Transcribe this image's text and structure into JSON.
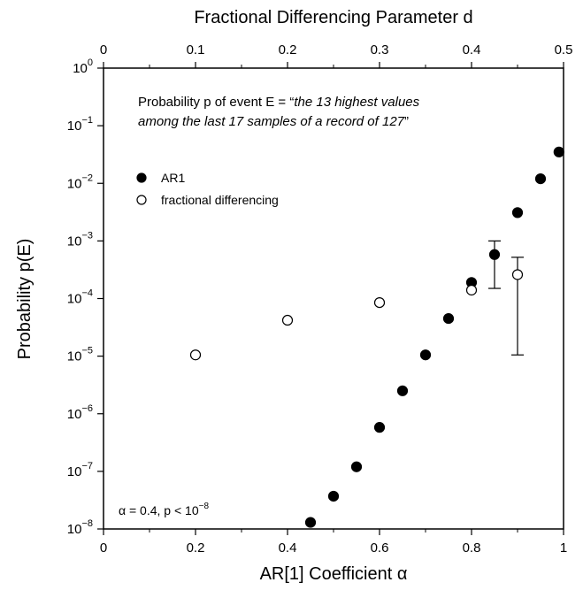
{
  "chart_data": {
    "type": "scatter",
    "title": "",
    "xlabel": "AR[1] Coefficient α",
    "x2label": "Fractional Differencing Parameter d",
    "ylabel": "Probability p(E)",
    "xlim": [
      0,
      1
    ],
    "x2lim": [
      0,
      0.5
    ],
    "ylim": [
      1e-08,
      1
    ],
    "yscale": "log",
    "grid": false,
    "legend_position": "upper-left",
    "x_ticks": [
      "0",
      "0.2",
      "0.4",
      "0.6",
      "0.8",
      "1"
    ],
    "x2_ticks": [
      "0",
      "0.1",
      "0.2",
      "0.3",
      "0.4",
      "0.5"
    ],
    "y_ticks": [
      {
        "base": "10",
        "exp": "0",
        "value": 1
      },
      {
        "base": "10",
        "exp": "−1",
        "value": 0.1
      },
      {
        "base": "10",
        "exp": "−2",
        "value": 0.01
      },
      {
        "base": "10",
        "exp": "−3",
        "value": 0.001
      },
      {
        "base": "10",
        "exp": "−4",
        "value": 0.0001
      },
      {
        "base": "10",
        "exp": "−5",
        "value": 1e-05
      },
      {
        "base": "10",
        "exp": "−6",
        "value": 1e-06
      },
      {
        "base": "10",
        "exp": "−7",
        "value": 1e-07
      },
      {
        "base": "10",
        "exp": "−8",
        "value": 1e-08
      }
    ],
    "annotation": {
      "prefix": "Probability p of event E = “",
      "line1_italic": "the 13 highest values",
      "line2_italic": "among the last 17 samples of a record of 127",
      "suffix": "”"
    },
    "footnote": {
      "text": "α = 0.4, p < 10",
      "exp": "−8"
    },
    "series": [
      {
        "name": "AR1",
        "marker": "filled",
        "color": "#000000",
        "x": [
          0.45,
          0.5,
          0.55,
          0.6,
          0.65,
          0.7,
          0.75,
          0.8,
          0.85,
          0.9,
          0.95,
          0.99
        ],
        "y": [
          1.3e-08,
          3.7e-08,
          1.2e-07,
          5.8e-07,
          2.5e-06,
          1.05e-05,
          4.5e-05,
          0.00019,
          0.00058,
          0.0031,
          0.012,
          0.035
        ],
        "error_bars": [
          {
            "x": 0.85,
            "low": 0.00015,
            "high": 0.001
          }
        ]
      },
      {
        "name": "fractional differencing",
        "marker": "open",
        "color": "#000000",
        "x": [
          0.2,
          0.4,
          0.6,
          0.8,
          0.9
        ],
        "y": [
          1.05e-05,
          4.2e-05,
          8.5e-05,
          0.00014,
          0.00026
        ],
        "error_bars": [
          {
            "x": 0.9,
            "low": 1.05e-05,
            "high": 0.00052
          }
        ]
      }
    ]
  }
}
